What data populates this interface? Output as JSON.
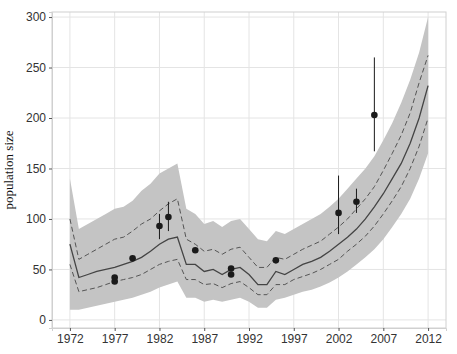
{
  "chart_data": {
    "type": "line",
    "y_label": "population size",
    "xlim": [
      1970,
      2014
    ],
    "ylim": [
      -8,
      305
    ],
    "xticks": [
      1972,
      1977,
      1982,
      1987,
      1992,
      1997,
      2002,
      2007,
      2012
    ],
    "yticks": [
      0,
      50,
      100,
      150,
      200,
      250,
      300
    ],
    "grid": true,
    "x": [
      1972,
      1973,
      1974,
      1975,
      1976,
      1977,
      1978,
      1979,
      1980,
      1981,
      1982,
      1983,
      1984,
      1985,
      1986,
      1987,
      1988,
      1989,
      1990,
      1991,
      1992,
      1993,
      1994,
      1995,
      1996,
      1997,
      1998,
      1999,
      2000,
      2001,
      2002,
      2003,
      2004,
      2005,
      2006,
      2007,
      2008,
      2009,
      2010,
      2011,
      2012
    ],
    "series": [
      {
        "type": "area",
        "color": "#c4c4c4",
        "low": [
          10,
          10,
          12,
          14,
          16,
          18,
          20,
          22,
          25,
          28,
          32,
          35,
          38,
          22,
          22,
          18,
          20,
          18,
          20,
          22,
          18,
          12,
          12,
          20,
          22,
          25,
          28,
          30,
          33,
          37,
          42,
          48,
          55,
          62,
          70,
          80,
          92,
          105,
          120,
          140,
          165
        ],
        "high": [
          140,
          90,
          95,
          100,
          105,
          110,
          112,
          118,
          128,
          135,
          145,
          150,
          155,
          110,
          105,
          95,
          98,
          92,
          98,
          100,
          90,
          80,
          78,
          88,
          85,
          90,
          95,
          100,
          105,
          112,
          120,
          130,
          140,
          150,
          162,
          178,
          195,
          215,
          238,
          265,
          300
        ]
      },
      {
        "type": "line",
        "line_style": "dashed",
        "color": "#555555",
        "values": [
          100,
          60,
          65,
          70,
          75,
          80,
          82,
          88,
          95,
          100,
          108,
          115,
          120,
          80,
          75,
          68,
          70,
          65,
          70,
          72,
          62,
          52,
          52,
          62,
          60,
          65,
          70,
          74,
          78,
          85,
          92,
          100,
          110,
          120,
          132,
          148,
          165,
          183,
          205,
          235,
          262
        ]
      },
      {
        "type": "line",
        "line_style": "solid",
        "color": "#444444",
        "values": [
          75,
          42,
          45,
          48,
          50,
          52,
          55,
          58,
          62,
          68,
          75,
          80,
          82,
          55,
          55,
          48,
          50,
          45,
          50,
          52,
          45,
          35,
          35,
          48,
          45,
          50,
          55,
          58,
          62,
          68,
          75,
          82,
          90,
          100,
          112,
          125,
          140,
          155,
          175,
          200,
          232
        ]
      },
      {
        "type": "line",
        "line_style": "dashed",
        "color": "#555555",
        "values": [
          55,
          28,
          30,
          32,
          35,
          38,
          40,
          42,
          45,
          50,
          55,
          58,
          60,
          40,
          40,
          35,
          36,
          32,
          36,
          38,
          32,
          25,
          25,
          35,
          35,
          40,
          43,
          46,
          50,
          55,
          60,
          68,
          75,
          83,
          93,
          105,
          118,
          132,
          150,
          172,
          200
        ]
      },
      {
        "type": "scatter",
        "marker": "circle",
        "color": "#1a1a1a",
        "x": [
          1977,
          1977,
          1979,
          1982,
          1983,
          1986,
          1990,
          1990,
          1995,
          2002,
          2004,
          2006
        ],
        "values": [
          38,
          42,
          61,
          93,
          102,
          69,
          45,
          51,
          59,
          106,
          117,
          203
        ],
        "lower": [
          null,
          null,
          null,
          80,
          88,
          null,
          null,
          null,
          null,
          85,
          106,
          167
        ],
        "upper": [
          null,
          null,
          null,
          105,
          117,
          null,
          null,
          null,
          null,
          143,
          130,
          260
        ]
      }
    ]
  }
}
